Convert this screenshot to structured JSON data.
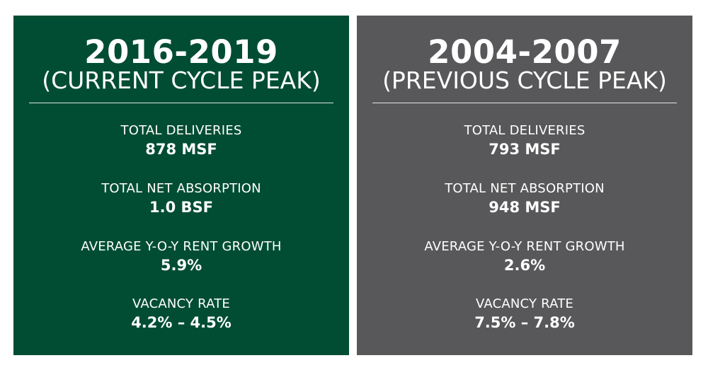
{
  "panels": [
    {
      "color": "#004d33",
      "year_range": "2016-2019",
      "subtitle": "(CURRENT CYCLE PEAK)",
      "stats": [
        {
          "label": "TOTAL DELIVERIES",
          "value": "878 MSF"
        },
        {
          "label": "TOTAL NET ABSORPTION",
          "value": "1.0 BSF"
        },
        {
          "label": "AVERAGE Y-O-Y RENT GROWTH",
          "value": "5.9%"
        },
        {
          "label": "VACANCY RATE",
          "value": "4.2% – 4.5%"
        }
      ]
    },
    {
      "color": "#58585a",
      "year_range": "2004-2007",
      "subtitle": "(PREVIOUS CYCLE PEAK)",
      "stats": [
        {
          "label": "TOTAL DELIVERIES",
          "value": "793 MSF"
        },
        {
          "label": "TOTAL NET ABSORPTION",
          "value": "948 MSF"
        },
        {
          "label": "AVERAGE Y-O-Y RENT GROWTH",
          "value": "2.6%"
        },
        {
          "label": "VACANCY RATE",
          "value": "7.5% – 7.8%"
        }
      ]
    }
  ]
}
